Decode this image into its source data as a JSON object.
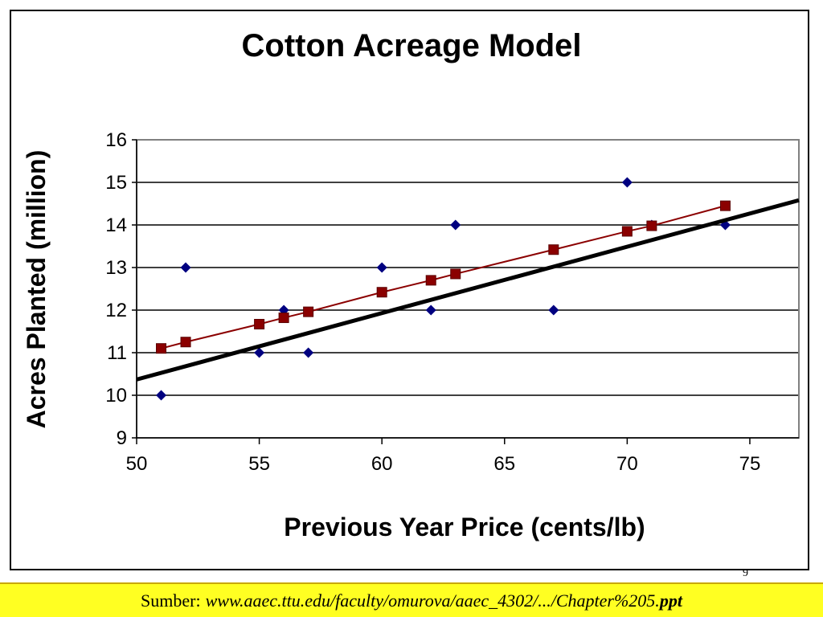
{
  "chart_data": {
    "type": "scatter",
    "title": "Cotton Acreage Model",
    "xlabel": "Previous Year Price (cents/lb)",
    "ylabel": "Acres Planted (million)",
    "xlim": [
      50,
      77
    ],
    "ylim": [
      9,
      16
    ],
    "x_ticks": [
      50,
      55,
      60,
      65,
      70,
      75
    ],
    "y_ticks": [
      9,
      10,
      11,
      12,
      13,
      14,
      15,
      16
    ],
    "grid": "horizontal",
    "legend": "none",
    "series": [
      {
        "marker": "diamond",
        "color": "#000080",
        "points": [
          [
            51,
            10
          ],
          [
            52,
            13
          ],
          [
            55,
            11
          ],
          [
            56,
            12
          ],
          [
            57,
            11
          ],
          [
            60,
            13
          ],
          [
            62,
            12
          ],
          [
            63,
            14
          ],
          [
            67,
            12
          ],
          [
            70,
            15
          ],
          [
            71,
            14
          ],
          [
            74,
            14
          ]
        ]
      },
      {
        "marker": "square",
        "line": true,
        "color": "#8b0000",
        "points": [
          [
            51,
            11.1
          ],
          [
            52,
            11.25
          ],
          [
            55,
            11.67
          ],
          [
            56,
            11.82
          ],
          [
            57,
            11.96
          ],
          [
            60,
            12.42
          ],
          [
            62,
            12.7
          ],
          [
            63,
            12.85
          ],
          [
            67,
            13.42
          ],
          [
            70,
            13.85
          ],
          [
            71,
            13.98
          ],
          [
            74,
            14.45
          ]
        ]
      },
      {
        "marker": "none",
        "line": true,
        "color": "#000000",
        "points": [
          [
            50,
            10.37
          ],
          [
            77,
            14.58
          ]
        ]
      }
    ]
  },
  "page_number": "9",
  "source": {
    "label": "Sumber:",
    "url": "www.aaec.ttu.edu/faculty/omurova/aaec_4302/.../Chapter%205.",
    "ext": "ppt"
  }
}
